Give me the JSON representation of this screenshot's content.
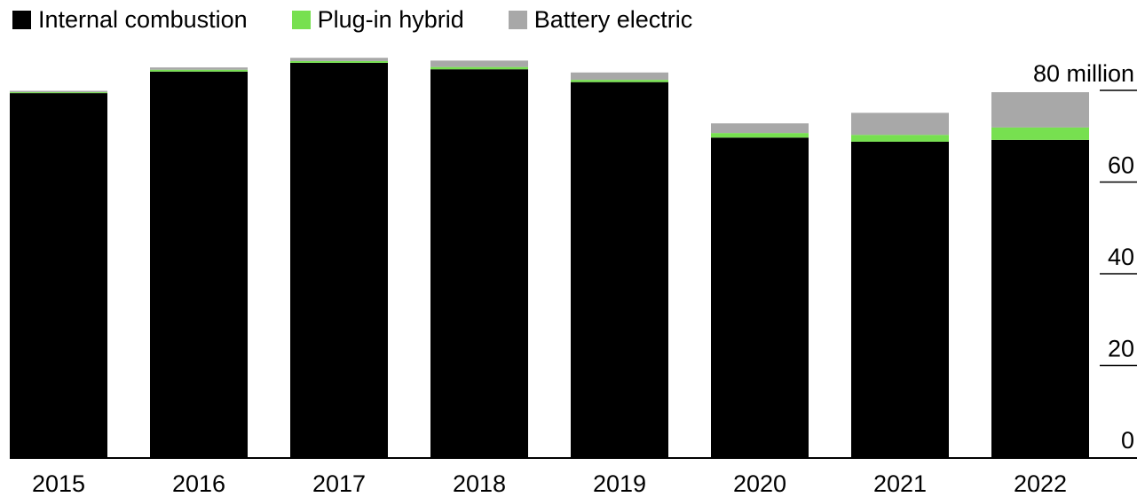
{
  "chart_data": {
    "type": "bar",
    "stacked": true,
    "categories": [
      "2015",
      "2016",
      "2017",
      "2018",
      "2019",
      "2020",
      "2021",
      "2022"
    ],
    "series": [
      {
        "name": "Internal combustion",
        "color": "#000000",
        "values": [
          79.4,
          84.1,
          86.0,
          84.6,
          81.8,
          69.7,
          68.8,
          69.2
        ]
      },
      {
        "name": "Plug-in hybrid",
        "color": "#77e050",
        "values": [
          0.2,
          0.4,
          0.4,
          0.5,
          0.5,
          1.0,
          1.5,
          2.7
        ]
      },
      {
        "name": "Battery electric",
        "color": "#a8a8a8",
        "values": [
          0.3,
          0.5,
          0.7,
          1.4,
          1.6,
          2.1,
          4.8,
          7.7
        ]
      }
    ],
    "y_ticks": [
      {
        "value": 0,
        "label": "0"
      },
      {
        "value": 20,
        "label": "20"
      },
      {
        "value": 40,
        "label": "40"
      },
      {
        "value": 60,
        "label": "60"
      },
      {
        "value": 80,
        "label": "80 million"
      }
    ],
    "ylim": [
      0,
      80
    ],
    "y_axis_side": "right",
    "legend_position": "top-left",
    "grid": false
  }
}
